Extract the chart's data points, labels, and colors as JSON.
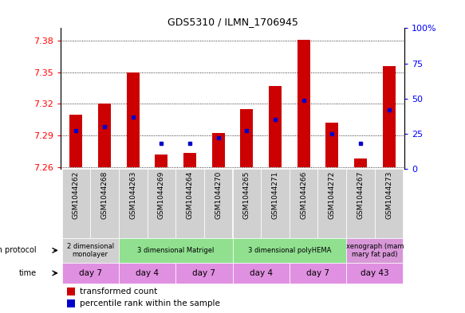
{
  "title": "GDS5310 / ILMN_1706945",
  "samples": [
    "GSM1044262",
    "GSM1044268",
    "GSM1044263",
    "GSM1044269",
    "GSM1044264",
    "GSM1044270",
    "GSM1044265",
    "GSM1044271",
    "GSM1044266",
    "GSM1044272",
    "GSM1044267",
    "GSM1044273"
  ],
  "transformed_count": [
    7.31,
    7.32,
    7.35,
    7.272,
    7.273,
    7.292,
    7.315,
    7.337,
    7.381,
    7.302,
    7.268,
    7.356
  ],
  "percentile_rank": [
    27,
    30,
    37,
    18,
    18,
    22,
    27,
    35,
    49,
    25,
    18,
    42
  ],
  "baseline": 7.26,
  "ylim_left": [
    7.258,
    7.392
  ],
  "ylim_right": [
    0,
    100
  ],
  "yticks_left": [
    7.26,
    7.29,
    7.32,
    7.35,
    7.38
  ],
  "yticks_right": [
    0,
    25,
    50,
    75,
    100
  ],
  "ytick_labels_right": [
    "0",
    "25",
    "50",
    "75",
    "100%"
  ],
  "bar_color": "#cc0000",
  "dot_color": "#0000cc",
  "growth_protocol_groups": [
    {
      "label": "2 dimensional\nmonolayer",
      "start": 0,
      "end": 2,
      "color": "#d0d0d0"
    },
    {
      "label": "3 dimensional Matrigel",
      "start": 2,
      "end": 6,
      "color": "#90e090"
    },
    {
      "label": "3 dimensional polyHEMA",
      "start": 6,
      "end": 10,
      "color": "#90e090"
    },
    {
      "label": "xenograph (mam\nmary fat pad)",
      "start": 10,
      "end": 12,
      "color": "#d898d8"
    }
  ],
  "time_groups": [
    {
      "label": "day 7",
      "start": 0,
      "end": 2,
      "color": "#e090e0"
    },
    {
      "label": "day 4",
      "start": 2,
      "end": 4,
      "color": "#e090e0"
    },
    {
      "label": "day 7",
      "start": 4,
      "end": 6,
      "color": "#e090e0"
    },
    {
      "label": "day 4",
      "start": 6,
      "end": 8,
      "color": "#e090e0"
    },
    {
      "label": "day 7",
      "start": 8,
      "end": 10,
      "color": "#e090e0"
    },
    {
      "label": "day 43",
      "start": 10,
      "end": 12,
      "color": "#e090e0"
    }
  ],
  "legend_items": [
    {
      "label": "transformed count",
      "color": "#cc0000"
    },
    {
      "label": "percentile rank within the sample",
      "color": "#0000cc"
    }
  ]
}
